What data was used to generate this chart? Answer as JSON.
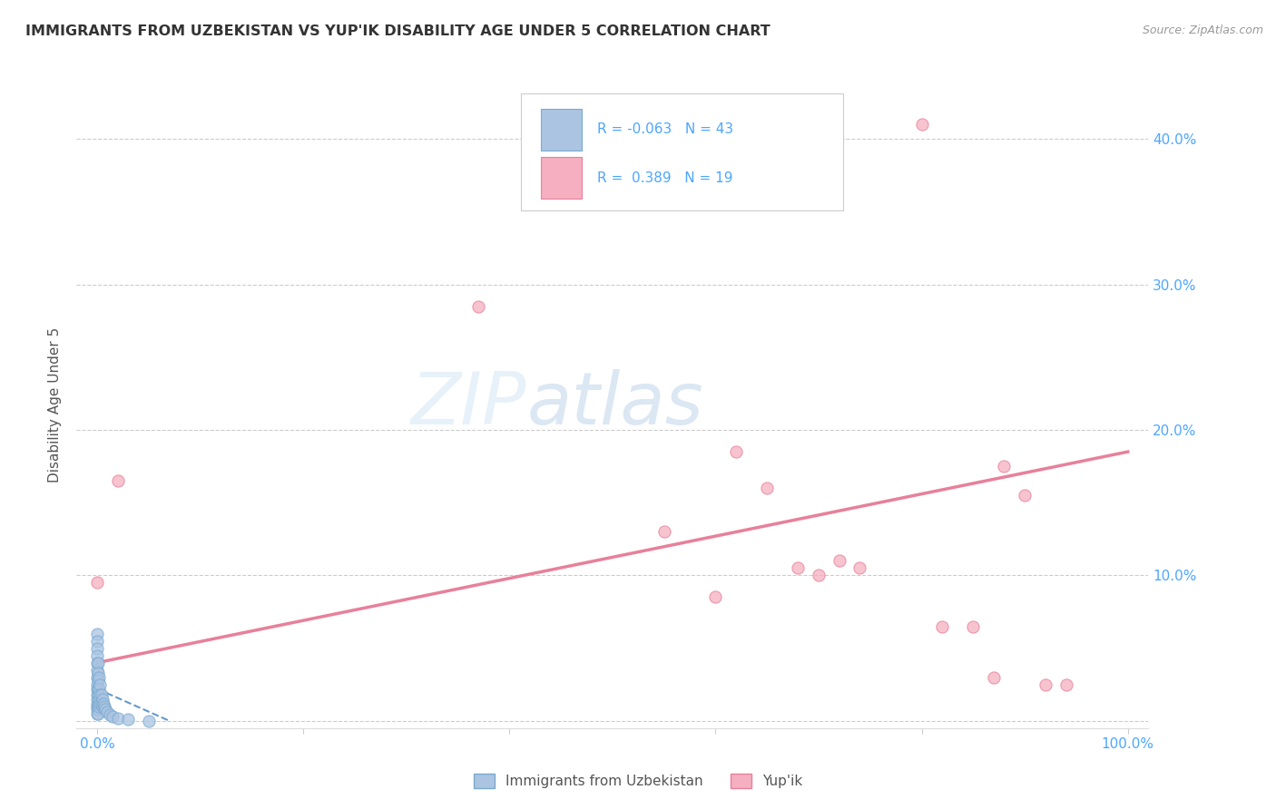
{
  "title": "IMMIGRANTS FROM UZBEKISTAN VS YUP'IK DISABILITY AGE UNDER 5 CORRELATION CHART",
  "source": "Source: ZipAtlas.com",
  "ylabel": "Disability Age Under 5",
  "watermark_zip": "ZIP",
  "watermark_atlas": "atlas",
  "legend_blue_r": "R = -0.063",
  "legend_blue_n": "N = 43",
  "legend_pink_r": "R =  0.389",
  "legend_pink_n": "N = 19",
  "legend_label_blue": "Immigrants from Uzbekistan",
  "legend_label_pink": "Yup'ik",
  "blue_color": "#aac4e2",
  "pink_color": "#f5afc0",
  "blue_edge_color": "#7aaad0",
  "pink_edge_color": "#e8809a",
  "blue_line_color": "#6699cc",
  "pink_line_color": "#e8809a",
  "blue_scatter": [
    [
      0.0,
      0.06
    ],
    [
      0.0,
      0.055
    ],
    [
      0.0,
      0.05
    ],
    [
      0.0,
      0.045
    ],
    [
      0.0,
      0.04
    ],
    [
      0.0,
      0.035
    ],
    [
      0.0,
      0.03
    ],
    [
      0.0,
      0.025
    ],
    [
      0.0,
      0.022
    ],
    [
      0.0,
      0.018
    ],
    [
      0.0,
      0.015
    ],
    [
      0.0,
      0.012
    ],
    [
      0.0,
      0.01
    ],
    [
      0.0,
      0.008
    ],
    [
      0.0,
      0.005
    ],
    [
      0.001,
      0.04
    ],
    [
      0.001,
      0.033
    ],
    [
      0.001,
      0.028
    ],
    [
      0.001,
      0.022
    ],
    [
      0.001,
      0.018
    ],
    [
      0.001,
      0.012
    ],
    [
      0.001,
      0.008
    ],
    [
      0.001,
      0.005
    ],
    [
      0.002,
      0.03
    ],
    [
      0.002,
      0.022
    ],
    [
      0.002,
      0.015
    ],
    [
      0.002,
      0.01
    ],
    [
      0.003,
      0.025
    ],
    [
      0.003,
      0.018
    ],
    [
      0.003,
      0.012
    ],
    [
      0.004,
      0.018
    ],
    [
      0.004,
      0.012
    ],
    [
      0.005,
      0.015
    ],
    [
      0.005,
      0.01
    ],
    [
      0.006,
      0.012
    ],
    [
      0.007,
      0.01
    ],
    [
      0.008,
      0.008
    ],
    [
      0.01,
      0.006
    ],
    [
      0.012,
      0.004
    ],
    [
      0.015,
      0.003
    ],
    [
      0.02,
      0.002
    ],
    [
      0.03,
      0.001
    ],
    [
      0.05,
      0.0
    ]
  ],
  "pink_scatter": [
    [
      0.0,
      0.095
    ],
    [
      0.02,
      0.165
    ],
    [
      0.37,
      0.285
    ],
    [
      0.55,
      0.13
    ],
    [
      0.6,
      0.085
    ],
    [
      0.62,
      0.185
    ],
    [
      0.65,
      0.16
    ],
    [
      0.68,
      0.105
    ],
    [
      0.7,
      0.1
    ],
    [
      0.72,
      0.11
    ],
    [
      0.74,
      0.105
    ],
    [
      0.8,
      0.41
    ],
    [
      0.82,
      0.065
    ],
    [
      0.85,
      0.065
    ],
    [
      0.87,
      0.03
    ],
    [
      0.88,
      0.175
    ],
    [
      0.9,
      0.155
    ],
    [
      0.92,
      0.025
    ],
    [
      0.94,
      0.025
    ]
  ],
  "blue_trendline_x": [
    0.0,
    0.07
  ],
  "blue_trendline_y": [
    0.022,
    0.0
  ],
  "pink_trendline_x": [
    0.0,
    1.0
  ],
  "pink_trendline_y": [
    0.04,
    0.185
  ],
  "xlim": [
    -0.02,
    1.02
  ],
  "ylim": [
    -0.005,
    0.44
  ],
  "ytick_vals": [
    0.0,
    0.1,
    0.2,
    0.3,
    0.4
  ],
  "ytick_labels": [
    "",
    "10.0%",
    "20.0%",
    "30.0%",
    "40.0%"
  ],
  "xtick_vals": [
    0.0,
    0.2,
    0.4,
    0.6,
    0.8,
    1.0
  ],
  "xtick_labels": [
    "0.0%",
    "",
    "",
    "",
    "",
    "100.0%"
  ],
  "grid_color": "#cccccc",
  "bg_color": "#ffffff",
  "title_color": "#333333",
  "axis_tick_color": "#4da6ff",
  "source_color": "#999999",
  "ylabel_color": "#555555",
  "marker_size": 90,
  "marker_alpha": 0.75
}
